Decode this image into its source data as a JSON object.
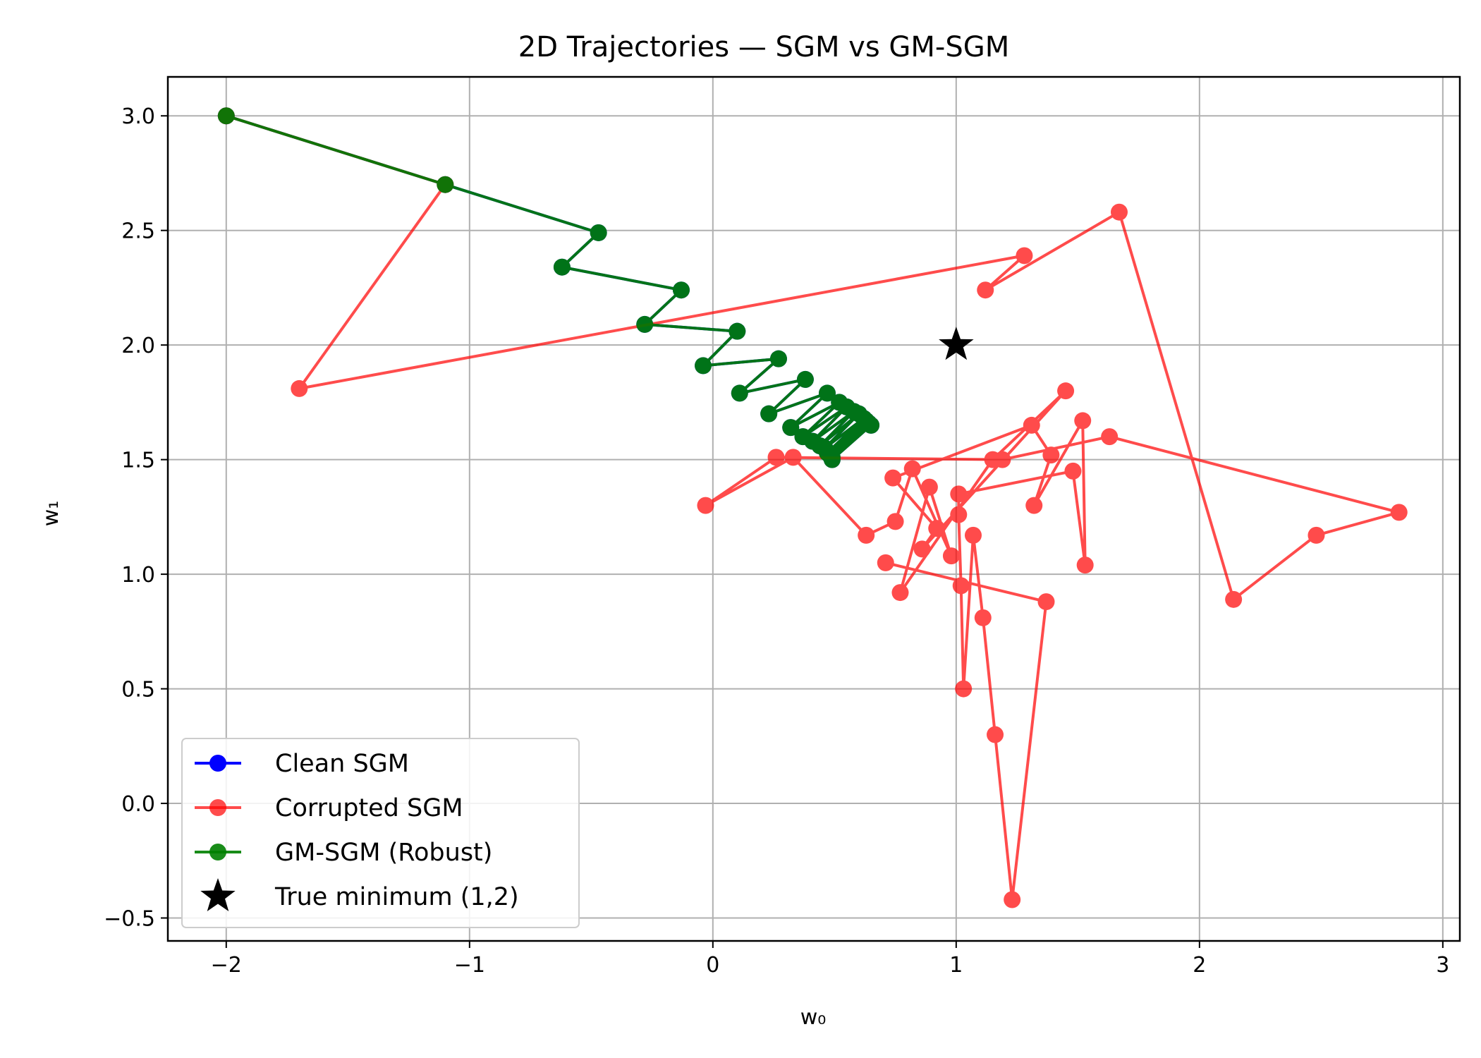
{
  "chart_data": {
    "type": "line",
    "title": "2D Trajectories — SGM vs GM-SGM",
    "xlabel": "w₀",
    "ylabel": "w₁",
    "xlim": [
      -2.24,
      3.07
    ],
    "ylim": [
      -0.6,
      3.17
    ],
    "xticks": [
      {
        "value": -2,
        "label": "−2"
      },
      {
        "value": -1,
        "label": "−1"
      },
      {
        "value": 0,
        "label": "0"
      },
      {
        "value": 1,
        "label": "1"
      },
      {
        "value": 2,
        "label": "2"
      },
      {
        "value": 3,
        "label": "3"
      }
    ],
    "yticks": [
      {
        "value": -0.5,
        "label": "−0.5"
      },
      {
        "value": 0.0,
        "label": "0.0"
      },
      {
        "value": 0.5,
        "label": "0.5"
      },
      {
        "value": 1.0,
        "label": "1.0"
      },
      {
        "value": 1.5,
        "label": "1.5"
      },
      {
        "value": 2.0,
        "label": "2.0"
      },
      {
        "value": 2.5,
        "label": "2.5"
      },
      {
        "value": 3.0,
        "label": "3.0"
      }
    ],
    "grid": true,
    "legend_position": "lower-left",
    "series": [
      {
        "name": "Clean SGM",
        "color": "#0000ff",
        "opacity": 1.0,
        "x": [
          -2.0,
          -1.1,
          -0.47,
          -0.62,
          -0.13,
          -0.28,
          0.1,
          -0.04,
          0.27,
          0.11,
          0.38,
          0.23,
          0.47,
          0.32,
          0.52,
          0.37,
          0.55,
          0.41,
          0.58,
          0.44,
          0.6,
          0.46,
          0.62,
          0.47,
          0.63,
          0.48,
          0.64,
          0.49,
          0.65,
          0.49
        ],
        "y": [
          3.0,
          2.7,
          2.49,
          2.34,
          2.24,
          2.09,
          2.06,
          1.91,
          1.94,
          1.79,
          1.85,
          1.7,
          1.79,
          1.64,
          1.75,
          1.6,
          1.73,
          1.58,
          1.71,
          1.56,
          1.7,
          1.55,
          1.68,
          1.53,
          1.67,
          1.52,
          1.66,
          1.51,
          1.65,
          1.5
        ]
      },
      {
        "name": "Corrupted SGM",
        "color": "#ff0000",
        "opacity": 0.7,
        "x": [
          -2.0,
          -1.1,
          -1.7,
          1.28,
          1.12,
          1.67,
          2.14,
          2.48,
          2.82,
          1.63,
          1.19,
          0.26,
          -0.03,
          0.33,
          0.63,
          0.75,
          0.82,
          0.98,
          0.89,
          0.77,
          1.15,
          1.45,
          0.86,
          0.92,
          0.74,
          1.31,
          1.39,
          1.32,
          1.52,
          1.53,
          1.48,
          1.01,
          1.01,
          1.02,
          1.03,
          1.07,
          1.11,
          1.16,
          1.23,
          1.37,
          0.71
        ],
        "y": [
          3.0,
          2.7,
          1.81,
          2.39,
          2.24,
          2.58,
          0.89,
          1.17,
          1.27,
          1.6,
          1.5,
          1.51,
          1.3,
          1.51,
          1.17,
          1.23,
          1.46,
          1.08,
          1.38,
          0.92,
          1.5,
          1.8,
          1.11,
          1.2,
          1.42,
          1.65,
          1.52,
          1.3,
          1.67,
          1.04,
          1.45,
          1.35,
          1.26,
          0.95,
          0.5,
          1.17,
          0.81,
          0.3,
          -0.42,
          0.88,
          1.05
        ]
      },
      {
        "name": "GM-SGM (Robust)",
        "color": "#008000",
        "opacity": 0.9,
        "x": [
          -2.0,
          -1.1,
          -0.47,
          -0.62,
          -0.13,
          -0.28,
          0.1,
          -0.04,
          0.27,
          0.11,
          0.38,
          0.23,
          0.47,
          0.32,
          0.52,
          0.37,
          0.55,
          0.41,
          0.58,
          0.44,
          0.6,
          0.46,
          0.62,
          0.47,
          0.63,
          0.48,
          0.64,
          0.49,
          0.65,
          0.49
        ],
        "y": [
          3.0,
          2.7,
          2.49,
          2.34,
          2.24,
          2.09,
          2.06,
          1.91,
          1.94,
          1.79,
          1.85,
          1.7,
          1.79,
          1.64,
          1.75,
          1.6,
          1.73,
          1.58,
          1.71,
          1.56,
          1.7,
          1.55,
          1.68,
          1.53,
          1.67,
          1.52,
          1.66,
          1.51,
          1.65,
          1.5
        ]
      }
    ],
    "markers": [
      {
        "name": "True minimum (1,2)",
        "x": 1,
        "y": 2,
        "symbol": "star",
        "color": "#000000"
      }
    ]
  }
}
